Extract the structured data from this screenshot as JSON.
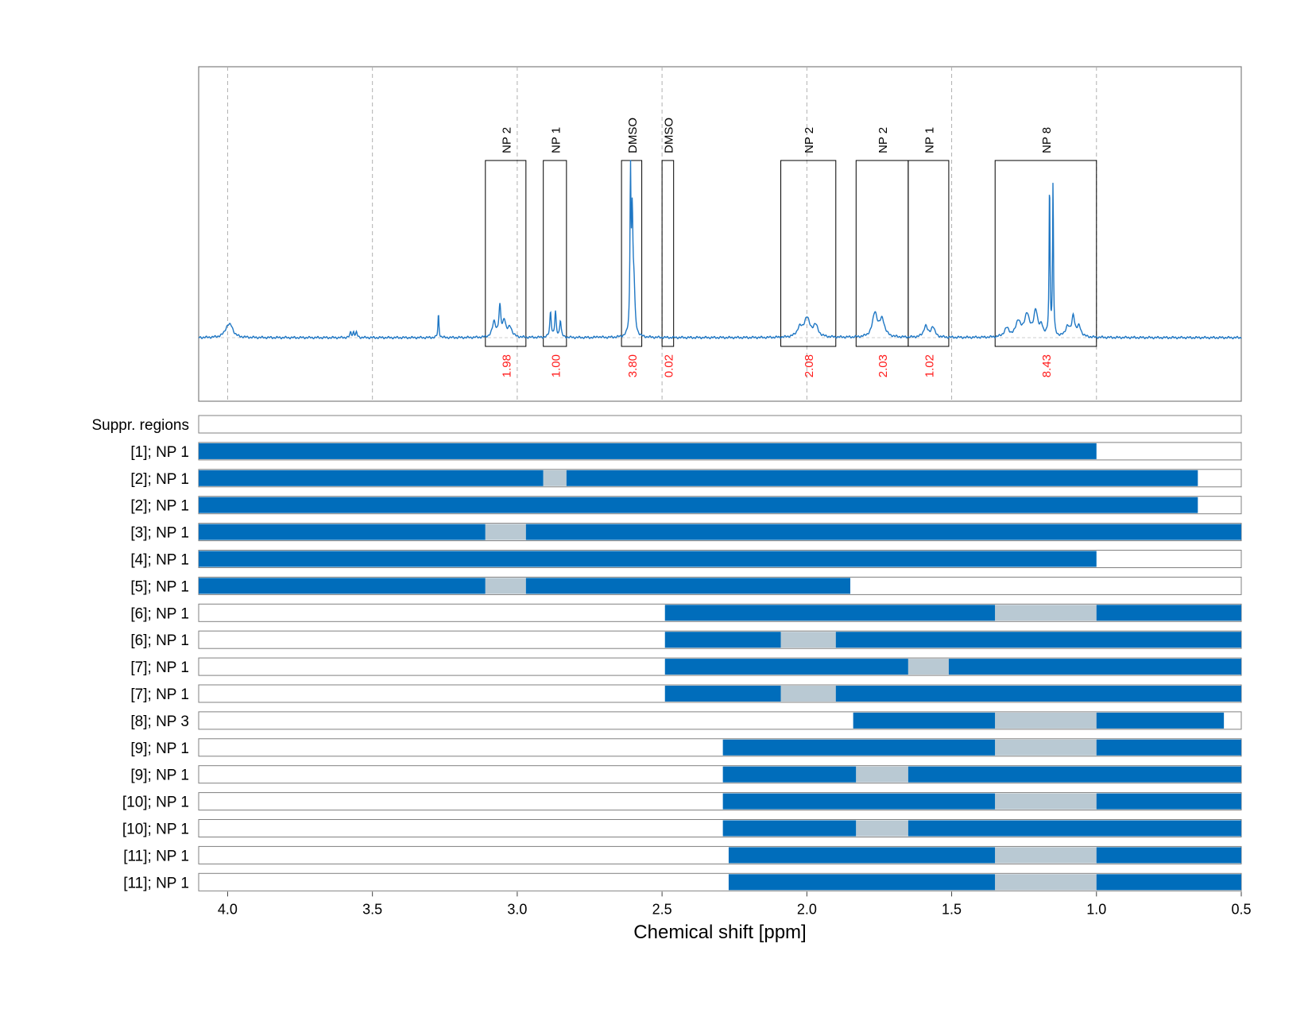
{
  "chart_data": {
    "type": "nmr-spectrum-with-region-bars",
    "xlabel": "Chemical shift [ppm]",
    "xlim": [
      4.1,
      0.5
    ],
    "x_ticks": [
      4.0,
      3.5,
      3.0,
      2.5,
      2.0,
      1.5,
      1.0,
      0.5
    ],
    "x_tick_labels": [
      "4.0",
      "3.5",
      "3.0",
      "2.5",
      "2.0",
      "1.5",
      "1.0",
      "0.5"
    ],
    "colors": {
      "spectrum": "#1f77c4",
      "bar_fill": "#006dbb",
      "excluded_fill": "#b9c9d3",
      "integral_text": "#ff1a1a",
      "box_stroke": "#000000",
      "grid": "#b0b0b0"
    },
    "peak_regions": [
      {
        "label": "NP 2",
        "from": 3.11,
        "to": 2.97,
        "integral": "1.98"
      },
      {
        "label": "NP 1",
        "from": 2.91,
        "to": 2.83,
        "integral": "1.00"
      },
      {
        "label": "DMSO",
        "from": 2.64,
        "to": 2.57,
        "integral": "3.80"
      },
      {
        "label": "DMSO",
        "from": 2.5,
        "to": 2.46,
        "integral": "0.02"
      },
      {
        "label": "NP 2",
        "from": 2.09,
        "to": 1.9,
        "integral": "2.08"
      },
      {
        "label": "NP 2",
        "from": 1.83,
        "to": 1.65,
        "integral": "2.03"
      },
      {
        "label": "NP 1",
        "from": 1.65,
        "to": 1.51,
        "integral": "1.02"
      },
      {
        "label": "NP 8",
        "from": 1.35,
        "to": 1.0,
        "integral": "8.43"
      }
    ],
    "spectrum_peaks": [
      {
        "ppm": 4.0,
        "height": 0.055,
        "width": 0.012
      },
      {
        "ppm": 3.988,
        "height": 0.045,
        "width": 0.01
      },
      {
        "ppm": 3.575,
        "height": 0.03,
        "width": 0.003
      },
      {
        "ppm": 3.565,
        "height": 0.032,
        "width": 0.003
      },
      {
        "ppm": 3.555,
        "height": 0.028,
        "width": 0.003
      },
      {
        "ppm": 3.272,
        "height": 0.14,
        "width": 0.002
      },
      {
        "ppm": 3.08,
        "height": 0.09,
        "width": 0.007
      },
      {
        "ppm": 3.06,
        "height": 0.17,
        "width": 0.004
      },
      {
        "ppm": 3.045,
        "height": 0.095,
        "width": 0.006
      },
      {
        "ppm": 3.025,
        "height": 0.06,
        "width": 0.008
      },
      {
        "ppm": 2.885,
        "height": 0.15,
        "width": 0.003
      },
      {
        "ppm": 2.868,
        "height": 0.145,
        "width": 0.003
      },
      {
        "ppm": 2.851,
        "height": 0.1,
        "width": 0.003
      },
      {
        "ppm": 2.72,
        "height": 0.006,
        "width": 0.005
      },
      {
        "ppm": 2.609,
        "height": 0.9,
        "width": 0.002
      },
      {
        "ppm": 2.603,
        "height": 0.65,
        "width": 0.003
      },
      {
        "ppm": 2.597,
        "height": 0.25,
        "width": 0.004
      },
      {
        "ppm": 2.0,
        "height": 0.11,
        "width": 0.012
      },
      {
        "ppm": 1.97,
        "height": 0.065,
        "width": 0.01
      },
      {
        "ppm": 2.025,
        "height": 0.05,
        "width": 0.01
      },
      {
        "ppm": 1.765,
        "height": 0.14,
        "width": 0.01
      },
      {
        "ppm": 1.74,
        "height": 0.1,
        "width": 0.01
      },
      {
        "ppm": 1.59,
        "height": 0.065,
        "width": 0.008
      },
      {
        "ppm": 1.565,
        "height": 0.06,
        "width": 0.008
      },
      {
        "ppm": 1.31,
        "height": 0.05,
        "width": 0.01
      },
      {
        "ppm": 1.27,
        "height": 0.09,
        "width": 0.01
      },
      {
        "ppm": 1.24,
        "height": 0.13,
        "width": 0.01
      },
      {
        "ppm": 1.21,
        "height": 0.15,
        "width": 0.008
      },
      {
        "ppm": 1.19,
        "height": 0.06,
        "width": 0.006
      },
      {
        "ppm": 1.162,
        "height": 0.91,
        "width": 0.0018
      },
      {
        "ppm": 1.15,
        "height": 0.9,
        "width": 0.0018
      },
      {
        "ppm": 1.1,
        "height": 0.06,
        "width": 0.008
      },
      {
        "ppm": 1.08,
        "height": 0.12,
        "width": 0.006
      },
      {
        "ppm": 1.06,
        "height": 0.06,
        "width": 0.008
      }
    ],
    "bar_rows": [
      {
        "label": "Suppr. regions",
        "segments": []
      },
      {
        "label": "[1]; NP 1",
        "segments": [
          {
            "from": 4.1,
            "to": 1.0,
            "kind": "included"
          }
        ]
      },
      {
        "label": "[2]; NP 1",
        "segments": [
          {
            "from": 4.1,
            "to": 2.91,
            "kind": "included"
          },
          {
            "from": 2.91,
            "to": 2.83,
            "kind": "excluded"
          },
          {
            "from": 2.83,
            "to": 0.65,
            "kind": "included"
          }
        ]
      },
      {
        "label": "[2]; NP 1",
        "segments": [
          {
            "from": 4.1,
            "to": 0.65,
            "kind": "included"
          }
        ]
      },
      {
        "label": "[3]; NP 1",
        "segments": [
          {
            "from": 4.1,
            "to": 3.11,
            "kind": "included"
          },
          {
            "from": 3.11,
            "to": 2.97,
            "kind": "excluded"
          },
          {
            "from": 2.97,
            "to": 0.5,
            "kind": "included"
          }
        ]
      },
      {
        "label": "[4]; NP 1",
        "segments": [
          {
            "from": 4.1,
            "to": 1.0,
            "kind": "included"
          }
        ]
      },
      {
        "label": "[5]; NP 1",
        "segments": [
          {
            "from": 4.1,
            "to": 3.11,
            "kind": "included"
          },
          {
            "from": 3.11,
            "to": 2.97,
            "kind": "excluded"
          },
          {
            "from": 2.97,
            "to": 1.85,
            "kind": "included"
          }
        ]
      },
      {
        "label": "[6]; NP 1",
        "segments": [
          {
            "from": 2.49,
            "to": 1.35,
            "kind": "included"
          },
          {
            "from": 1.35,
            "to": 1.0,
            "kind": "excluded"
          },
          {
            "from": 1.0,
            "to": 0.5,
            "kind": "included"
          }
        ]
      },
      {
        "label": "[6]; NP 1",
        "segments": [
          {
            "from": 2.49,
            "to": 2.09,
            "kind": "included"
          },
          {
            "from": 2.09,
            "to": 1.9,
            "kind": "excluded"
          },
          {
            "from": 1.9,
            "to": 0.5,
            "kind": "included"
          }
        ]
      },
      {
        "label": "[7]; NP 1",
        "segments": [
          {
            "from": 2.49,
            "to": 1.65,
            "kind": "included"
          },
          {
            "from": 1.65,
            "to": 1.51,
            "kind": "excluded"
          },
          {
            "from": 1.51,
            "to": 0.5,
            "kind": "included"
          }
        ]
      },
      {
        "label": "[7]; NP 1",
        "segments": [
          {
            "from": 2.49,
            "to": 2.09,
            "kind": "included"
          },
          {
            "from": 2.09,
            "to": 1.9,
            "kind": "excluded"
          },
          {
            "from": 1.9,
            "to": 0.5,
            "kind": "included"
          }
        ]
      },
      {
        "label": "[8]; NP 3",
        "segments": [
          {
            "from": 1.84,
            "to": 1.35,
            "kind": "included"
          },
          {
            "from": 1.35,
            "to": 1.0,
            "kind": "excluded"
          },
          {
            "from": 1.0,
            "to": 0.56,
            "kind": "included"
          }
        ]
      },
      {
        "label": "[9]; NP 1",
        "segments": [
          {
            "from": 2.29,
            "to": 1.35,
            "kind": "included"
          },
          {
            "from": 1.35,
            "to": 1.0,
            "kind": "excluded"
          },
          {
            "from": 1.0,
            "to": 0.5,
            "kind": "included"
          }
        ]
      },
      {
        "label": "[9]; NP 1",
        "segments": [
          {
            "from": 2.29,
            "to": 1.83,
            "kind": "included"
          },
          {
            "from": 1.83,
            "to": 1.65,
            "kind": "excluded"
          },
          {
            "from": 1.65,
            "to": 0.5,
            "kind": "included"
          }
        ]
      },
      {
        "label": "[10]; NP 1",
        "segments": [
          {
            "from": 2.29,
            "to": 1.35,
            "kind": "included"
          },
          {
            "from": 1.35,
            "to": 1.0,
            "kind": "excluded"
          },
          {
            "from": 1.0,
            "to": 0.5,
            "kind": "included"
          }
        ]
      },
      {
        "label": "[10]; NP 1",
        "segments": [
          {
            "from": 2.29,
            "to": 1.83,
            "kind": "included"
          },
          {
            "from": 1.83,
            "to": 1.65,
            "kind": "excluded"
          },
          {
            "from": 1.65,
            "to": 0.5,
            "kind": "included"
          }
        ]
      },
      {
        "label": "[11]; NP 1",
        "segments": [
          {
            "from": 2.27,
            "to": 1.35,
            "kind": "included"
          },
          {
            "from": 1.35,
            "to": 1.0,
            "kind": "excluded"
          },
          {
            "from": 1.0,
            "to": 0.5,
            "kind": "included"
          }
        ]
      },
      {
        "label": "[11]; NP 1",
        "segments": [
          {
            "from": 2.27,
            "to": 1.35,
            "kind": "included"
          },
          {
            "from": 1.35,
            "to": 1.0,
            "kind": "excluded"
          },
          {
            "from": 1.0,
            "to": 0.5,
            "kind": "included"
          }
        ]
      }
    ]
  }
}
